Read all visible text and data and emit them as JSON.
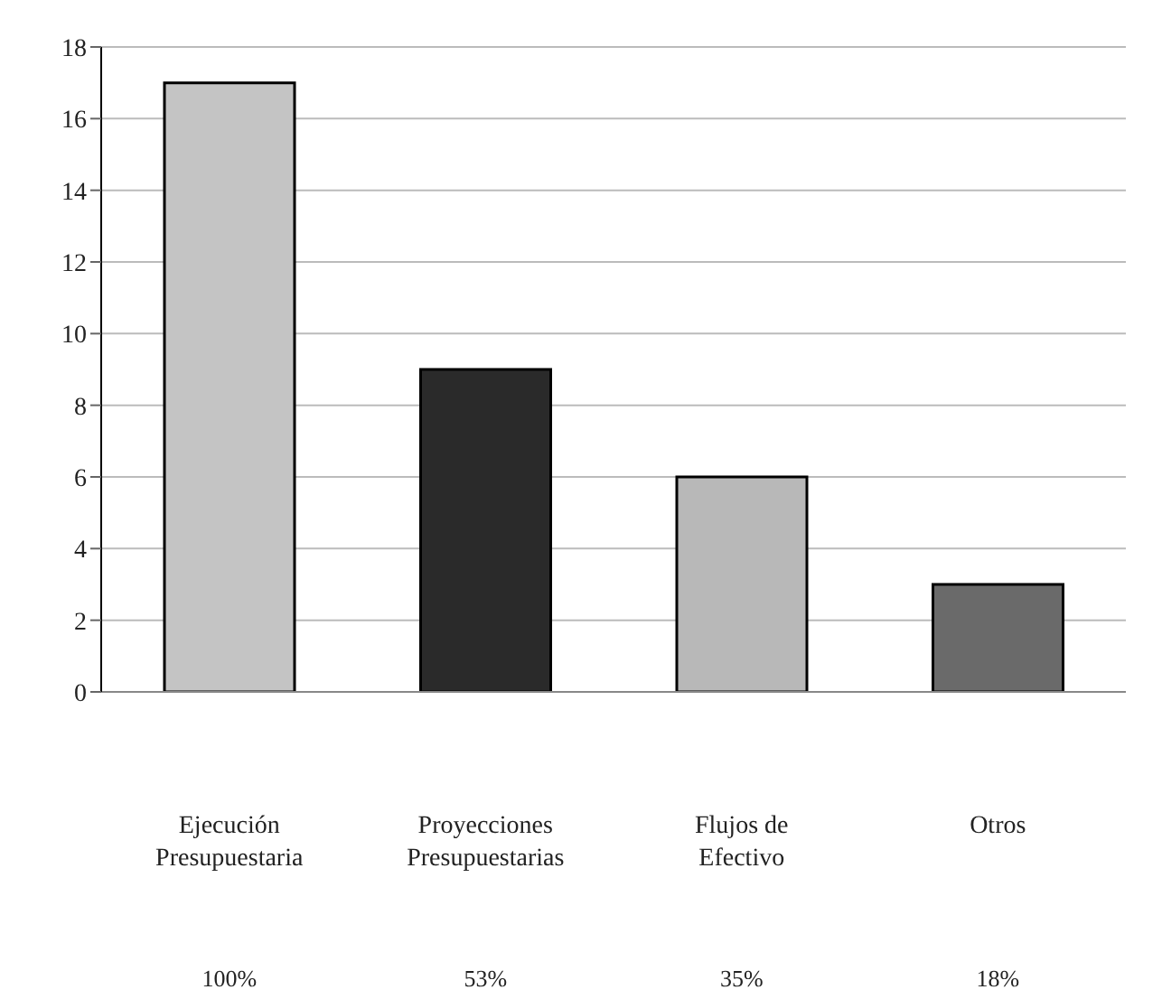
{
  "chart_data": {
    "type": "bar",
    "categories": [
      "Ejecución Presupuestaria",
      "Proyecciones Presupuestarias",
      "Flujos de Efectivo",
      "Otros"
    ],
    "values": [
      17,
      9,
      6,
      3
    ],
    "colors": [
      "#c4c4c4",
      "#2a2a2a",
      "#b8b8b8",
      "#6a6a6a"
    ],
    "annotations": [
      "100%",
      "53%",
      "35%",
      "18%"
    ],
    "ylim": [
      0,
      18
    ],
    "yticks": [
      0,
      2,
      4,
      6,
      8,
      10,
      12,
      14,
      16,
      18
    ],
    "grid": "y"
  }
}
